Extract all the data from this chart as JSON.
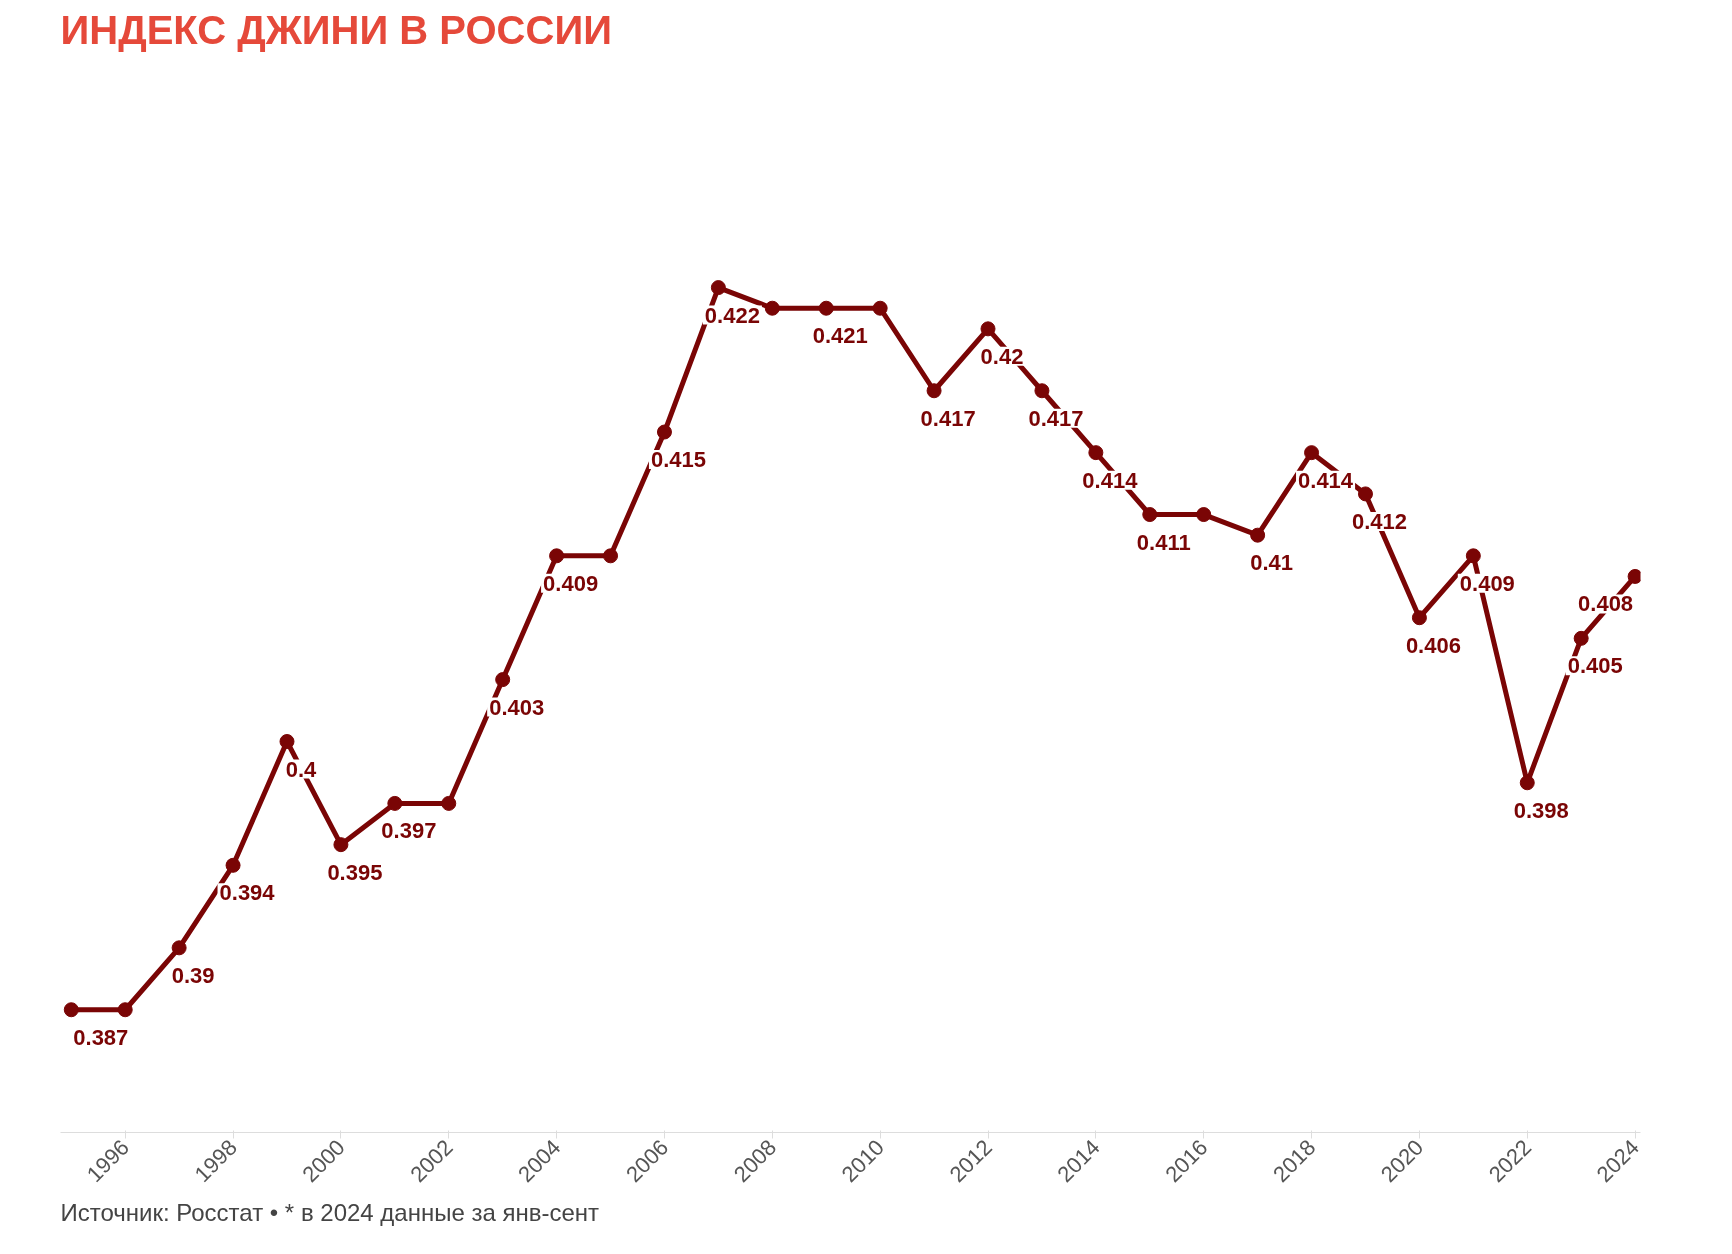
{
  "chart_data": {
    "type": "line",
    "title": "ИНДЕКС ДЖИНИ В РОССИИ",
    "x": [
      1995,
      1996,
      1997,
      1998,
      1999,
      2000,
      2001,
      2002,
      2003,
      2004,
      2005,
      2006,
      2007,
      2008,
      2009,
      2010,
      2011,
      2012,
      2013,
      2014,
      2015,
      2016,
      2017,
      2018,
      2019,
      2020,
      2021,
      2022,
      2023,
      2024
    ],
    "series": [
      {
        "color": "#7a0505",
        "values": [
          0.387,
          0.387,
          0.39,
          0.394,
          0.4,
          0.395,
          0.397,
          0.397,
          0.403,
          0.409,
          0.409,
          0.415,
          0.422,
          0.421,
          0.421,
          0.421,
          0.417,
          0.42,
          0.417,
          0.414,
          0.411,
          0.411,
          0.41,
          0.414,
          0.412,
          0.406,
          0.409,
          0.398,
          0.405,
          0.408
        ],
        "value_labels": [
          "0.387",
          null,
          "0.39",
          "0.394",
          "0.4",
          "0.395",
          "0.397",
          null,
          "0.403",
          "0.409",
          null,
          "0.415",
          "0.422",
          null,
          "0.421",
          null,
          "0.417",
          "0.42",
          "0.417",
          "0.414",
          "0.411",
          null,
          "0.41",
          "0.414",
          "0.412",
          "0.406",
          "0.409",
          "0.398",
          "0.405",
          "0.408"
        ]
      }
    ],
    "xlim": [
      1994.8,
      2024.1
    ],
    "xticks": [
      1996,
      1998,
      2000,
      2002,
      2004,
      2006,
      2008,
      2010,
      2012,
      2014,
      2016,
      2018,
      2020,
      2022,
      2024
    ],
    "tick_labels": "x",
    "grid": false,
    "marker": "circle",
    "line_style": "solid",
    "annotations": [
      "Источник: Росстат • * в 2024 данные за янв-сент"
    ]
  }
}
